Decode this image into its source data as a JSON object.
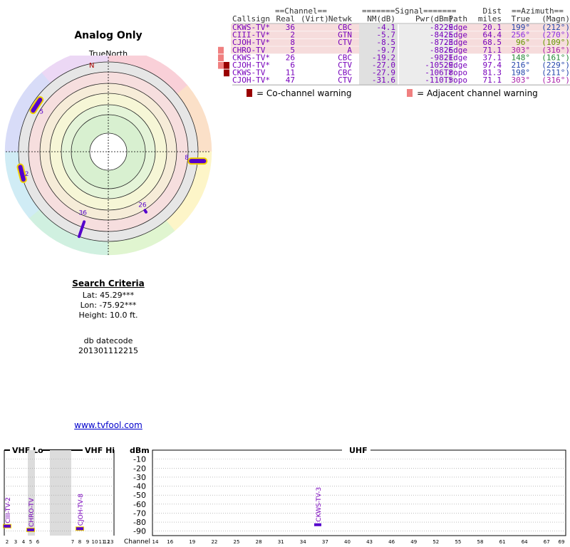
{
  "polar": {
    "title": "Analog Only",
    "true_north_label": "TrueNorth",
    "north_letter": "N",
    "channel_markers": [
      {
        "label": "5",
        "az_true": 303,
        "ring": 4
      },
      {
        "label": "2",
        "az_true": 256,
        "ring": 4
      },
      {
        "label": "8",
        "az_true": 96,
        "ring": 4
      },
      {
        "label": "36",
        "az_true": 199,
        "ring": 4
      },
      {
        "label": "26",
        "az_true": 148,
        "ring": 4
      }
    ]
  },
  "criteria": {
    "header": "Search Criteria",
    "lat": "Lat: 45.29***",
    "lon": "Lon: -75.92***",
    "height": "Height: 10.0 ft.",
    "db_label": "db datecode",
    "db_value": "201301112215"
  },
  "link_text": "www.tvfool.com",
  "table": {
    "group_headers": {
      "channel": "==Channel==",
      "signal": "=======Signal=======",
      "dist": "Dist",
      "azimuth": "==Azimuth=="
    },
    "columns": [
      "Callsign",
      "Real",
      "(Virt)",
      "Netwk",
      "NM(dB)",
      "Pwr(dBm)",
      "Path",
      "miles",
      "True",
      "(Magn)"
    ],
    "rows": [
      {
        "callsign": "CKWS-TV*",
        "real": "36",
        "virt": "",
        "netwk": "CBC",
        "nm": "-4.1",
        "pwr": "-82.9",
        "path": "2Edge",
        "dist": "20.1",
        "az_true": "199°",
        "az_magn": "(212°)",
        "az_color": "#2244aa",
        "band": "#f6dcdc",
        "warn": ""
      },
      {
        "callsign": "CIII-TV*",
        "real": "2",
        "virt": "",
        "netwk": "GTN",
        "nm": "-5.7",
        "pwr": "-84.5",
        "path": "2Edge",
        "dist": "64.4",
        "az_true": "256°",
        "az_magn": "(270°)",
        "az_color": "#8a2be2",
        "band": "#f6dcdc",
        "warn": ""
      },
      {
        "callsign": "CJOH-TV*",
        "real": "8",
        "virt": "",
        "netwk": "CTV",
        "nm": "-8.5",
        "pwr": "-87.3",
        "path": "2Edge",
        "dist": "68.5",
        "az_true": "96°",
        "az_magn": "(109°)",
        "az_color": "#669900",
        "band": "#f6dcdc",
        "warn": ""
      },
      {
        "callsign": "CHRO-TV",
        "real": "5",
        "virt": "",
        "netwk": "A",
        "nm": "-9.7",
        "pwr": "-88.6",
        "path": "2Edge",
        "dist": "71.1",
        "az_true": "303°",
        "az_magn": "(316°)",
        "az_color": "#aa22aa",
        "band": "#f6dcdc",
        "warn": "adj"
      },
      {
        "callsign": "CKWS-TV*",
        "real": "26",
        "virt": "",
        "netwk": "CBC",
        "nm": "-19.2",
        "pwr": "-98.1",
        "path": "2Edge",
        "dist": "37.1",
        "az_true": "148°",
        "az_magn": "(161°)",
        "az_color": "#228833",
        "band": "#ffffff",
        "warn": "adj"
      },
      {
        "callsign": "CJOH-TV*",
        "real": "6",
        "virt": "",
        "netwk": "CTV",
        "nm": "-27.0",
        "pwr": "-105.9",
        "path": "2Edge",
        "dist": "97.4",
        "az_true": "216°",
        "az_magn": "(229°)",
        "az_color": "#2244aa",
        "band": "#ffffff",
        "warn": "both"
      },
      {
        "callsign": "CKWS-TV",
        "real": "11",
        "virt": "",
        "netwk": "CBC",
        "nm": "-27.9",
        "pwr": "-106.8",
        "path": "Tropo",
        "dist": "81.3",
        "az_true": "198°",
        "az_magn": "(211°)",
        "az_color": "#2244aa",
        "band": "#ffffff",
        "warn": "co"
      },
      {
        "callsign": "CJOH-TV*",
        "real": "47",
        "virt": "",
        "netwk": "CTV",
        "nm": "-31.6",
        "pwr": "-110.5",
        "path": "Tropo",
        "dist": "71.1",
        "az_true": "303°",
        "az_magn": "(316°)",
        "az_color": "#aa22aa",
        "band": "#ffffff",
        "warn": ""
      }
    ],
    "warning_legend": {
      "co": "= Co-channel warning",
      "adj": "= Adjacent channel warning",
      "co_color": "#990000",
      "adj_color": "#f08080"
    }
  },
  "spectrum": {
    "sections": {
      "vhf_lo": "VHF Lo",
      "vhf_hi": "VHF Hi",
      "dbm": "dBm",
      "uhf": "UHF"
    },
    "y_ticks": [
      "-10",
      "-20",
      "-30",
      "-40",
      "-50",
      "-60",
      "-70",
      "-80",
      "-90"
    ],
    "vhf_x_labels": [
      "2",
      "3",
      "4",
      "5",
      "6",
      "7",
      "8",
      "9",
      "10",
      "11",
      "12",
      "13"
    ],
    "channel_label": "Channel",
    "uhf_x_labels": [
      "14",
      "16",
      "19",
      "22",
      "25",
      "28",
      "31",
      "34",
      "37",
      "40",
      "43",
      "46",
      "49",
      "52",
      "55",
      "58",
      "61",
      "64",
      "67",
      "69"
    ],
    "bars": [
      {
        "label": "CIII-TV-2",
        "channel": 2,
        "dbm": -84.5
      },
      {
        "label": "CHRO-TV",
        "channel": 5,
        "dbm": -88.6
      },
      {
        "label": "CJOH-TV-8",
        "channel": 8,
        "dbm": -87.3
      },
      {
        "label": "CKWS-TV-3",
        "channel": 36,
        "dbm": -82.9
      }
    ],
    "gray_channels": [
      5,
      6
    ]
  }
}
